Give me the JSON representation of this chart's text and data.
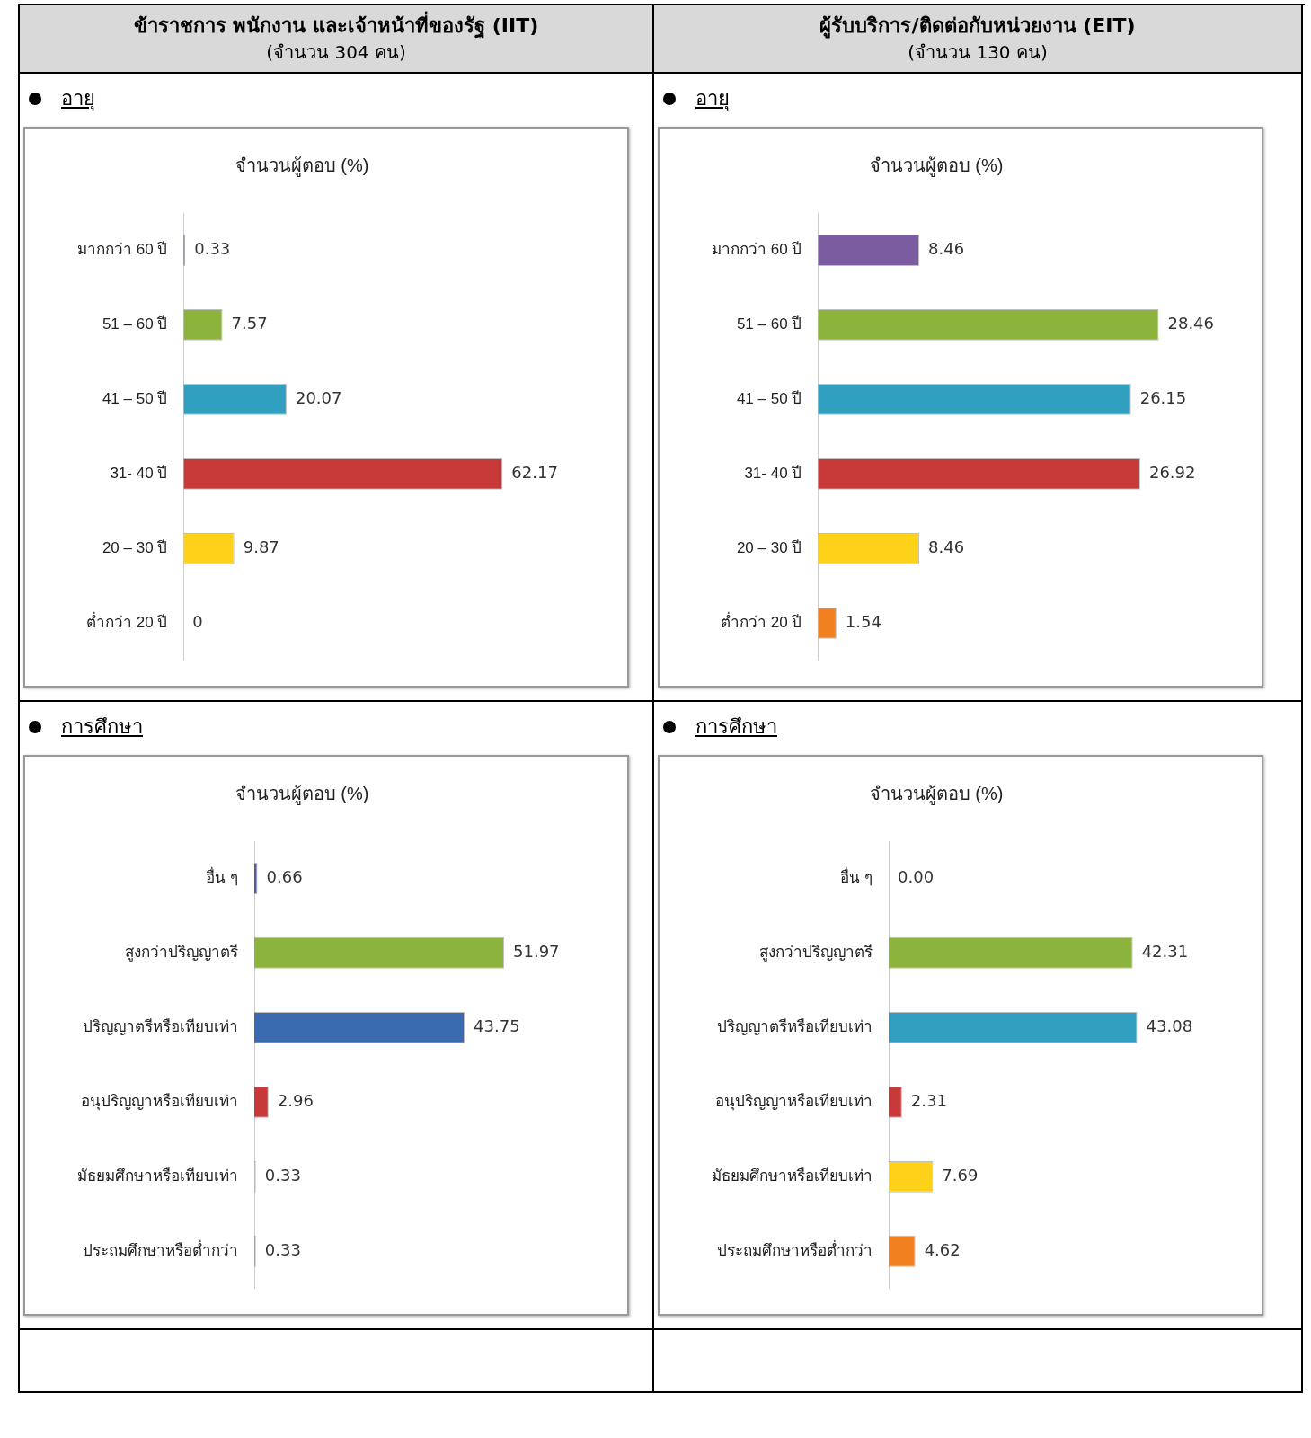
{
  "chart_data": [
    {
      "type": "bar",
      "orientation": "horizontal",
      "title": "จำนวนผู้ตอบ (%)",
      "annotations": [
        "ข้าราชการ พนักงาน และเจ้าหน้าที่ของรัฐ (IIT)",
        "(จำนวน 304 คน)",
        "อายุ"
      ],
      "categories": [
        "มากกว่า 60 ปี",
        "51 – 60 ปี",
        "41 – 50 ปี",
        "31- 40 ปี",
        "20 – 30 ปี",
        "ต่ำกว่า 20 ปี"
      ],
      "values": [
        0.33,
        7.57,
        20.07,
        62.17,
        9.87,
        0
      ],
      "value_labels": [
        "0.33",
        "7.57",
        "20.07",
        "62.17",
        "9.87",
        "0"
      ],
      "colors": [
        "#5a5a7a",
        "#8cb33c",
        "#31a0c0",
        "#c83a3a",
        "#ffd21a",
        "#f08020"
      ],
      "tick_labels": "y",
      "grid": false,
      "legend": false
    },
    {
      "type": "bar",
      "orientation": "horizontal",
      "title": "จำนวนผู้ตอบ (%)",
      "annotations": [
        "ผู้รับบริการ/ติดต่อกับหน่วยงาน (EIT)",
        "(จำนวน 130 คน)",
        "อายุ"
      ],
      "categories": [
        "มากกว่า 60 ปี",
        "51 – 60 ปี",
        "41 – 50 ปี",
        "31- 40 ปี",
        "20 – 30 ปี",
        "ต่ำกว่า 20 ปี"
      ],
      "values": [
        8.46,
        28.46,
        26.15,
        26.92,
        8.46,
        1.54
      ],
      "value_labels": [
        "8.46",
        "28.46",
        "26.15",
        "26.92",
        "8.46",
        "1.54"
      ],
      "colors": [
        "#7b5ca0",
        "#8cb33c",
        "#31a0c0",
        "#c83a3a",
        "#ffd21a",
        "#f08020"
      ],
      "tick_labels": "y",
      "grid": false,
      "legend": false
    },
    {
      "type": "bar",
      "orientation": "horizontal",
      "title": "จำนวนผู้ตอบ (%)",
      "annotations": [
        "การศึกษา"
      ],
      "categories": [
        "อื่น ๆ",
        "สูงกว่าปริญญาตรี",
        "ปริญญาตรีหรือเทียบเท่า",
        "อนุปริญญาหรือเทียบเท่า",
        "มัธยมศึกษาหรือเทียบเท่า",
        "ประถมศึกษาหรือต่ำกว่า"
      ],
      "values": [
        0.66,
        51.97,
        43.75,
        2.96,
        0.33,
        0.33
      ],
      "value_labels": [
        "0.66",
        "51.97",
        "43.75",
        "2.96",
        "0.33",
        "0.33"
      ],
      "colors": [
        "#4f5f8f",
        "#8cb33c",
        "#3a6ab0",
        "#c83a3a",
        "#c8c860",
        "#c89060"
      ],
      "tick_labels": "y",
      "grid": false,
      "legend": false
    },
    {
      "type": "bar",
      "orientation": "horizontal",
      "title": "จำนวนผู้ตอบ (%)",
      "annotations": [
        "การศึกษา"
      ],
      "categories": [
        "อื่น ๆ",
        "สูงกว่าปริญญาตรี",
        "ปริญญาตรีหรือเทียบเท่า",
        "อนุปริญญาหรือเทียบเท่า",
        "มัธยมศึกษาหรือเทียบเท่า",
        "ประถมศึกษาหรือต่ำกว่า"
      ],
      "values": [
        0,
        42.31,
        43.08,
        2.31,
        7.69,
        4.62
      ],
      "value_labels": [
        "0.00",
        "42.31",
        "43.08",
        "2.31",
        "7.69",
        "4.62"
      ],
      "colors": [
        "#4f5f8f",
        "#8cb33c",
        "#31a0c0",
        "#c83a3a",
        "#ffd21a",
        "#f08020"
      ],
      "tick_labels": "y",
      "grid": false,
      "legend": false
    }
  ]
}
